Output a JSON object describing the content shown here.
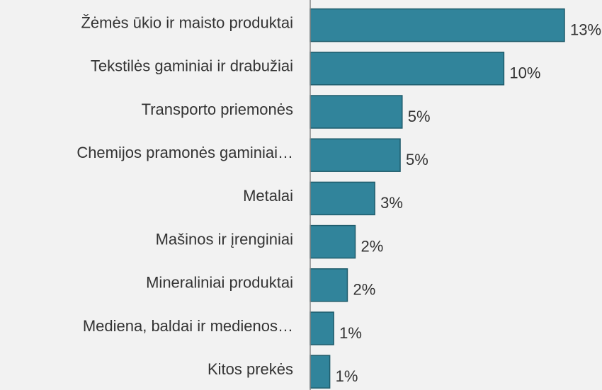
{
  "chart_data": {
    "type": "barh",
    "categories": [
      "Žėmės ūkio ir maisto produktai",
      "Tekstilės gaminiai ir drabužiai",
      "Transporto priemonės",
      "Chemijos pramonės gaminiai…",
      "Metalai",
      "Mašinos ir įrenginiai",
      "Mineraliniai produktai",
      "Mediena, baldai ir medienos…",
      "Kitos prekės"
    ],
    "values": [
      13,
      9.9,
      4.7,
      4.6,
      3.3,
      2.3,
      1.9,
      1.2,
      1.0
    ],
    "value_labels": [
      "13%",
      "10%",
      "5%",
      "5%",
      "3%",
      "2%",
      "2%",
      "1%",
      "1%"
    ],
    "color": "#31849b",
    "xlim": [
      0,
      13
    ]
  }
}
